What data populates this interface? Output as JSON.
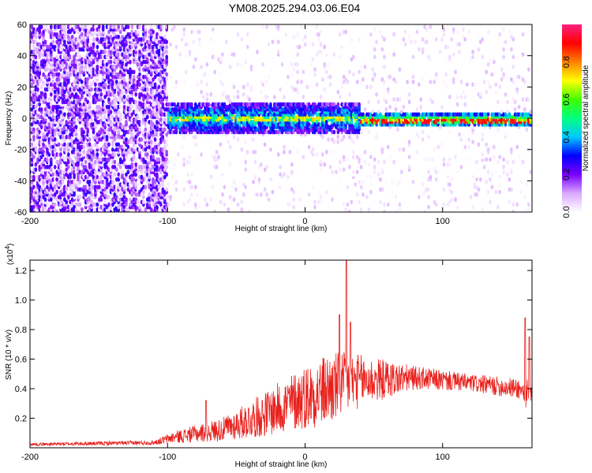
{
  "title": "YM08.2025.294.03.06.E04",
  "chart_data": [
    {
      "type": "heatmap",
      "panel": "spectrogram",
      "xlabel": "Height of straight line (km)",
      "ylabel": "Frequency (Hz)",
      "xlim": [
        -200,
        165
      ],
      "ylim": [
        -60,
        60
      ],
      "xticks": [
        -200,
        -100,
        0,
        100
      ],
      "yticks": [
        60,
        40,
        20,
        0,
        -20,
        -40,
        -60
      ],
      "colorbar": {
        "label": "Normalized spectral amplitude",
        "range": [
          0.0,
          1.0
        ],
        "ticks": [
          "0.0",
          "0.2",
          "0.4",
          "0.6",
          "0.8"
        ],
        "colors": [
          "#ffffff",
          "#d9a8ff",
          "#7a00ff",
          "#0000ff",
          "#00c8ff",
          "#00ff80",
          "#40ff00",
          "#ffff00",
          "#ff8000",
          "#ff0000",
          "#ff2080"
        ]
      },
      "regions": [
        {
          "x_start": -200,
          "x_end": -105,
          "freq_halfwidth": 60,
          "mean_amplitude": 0.15,
          "description_level": "broadband noise"
        },
        {
          "x_start": -115,
          "x_end": -100,
          "freq_halfwidth": 15,
          "mean_amplitude": 0.2
        },
        {
          "x_start": -100,
          "x_end": 40,
          "freq_halfwidth": 10,
          "mean_amplitude": 0.35,
          "peak_amplitude": 0.75,
          "center_freq": 0
        },
        {
          "x_start": 40,
          "x_end": 165,
          "freq_halfwidth": 4,
          "mean_amplitude": 0.55,
          "peak_amplitude": 0.95,
          "center_freq": -1
        }
      ]
    },
    {
      "type": "line",
      "panel": "snr",
      "xlabel": "Height of straight line (km)",
      "ylabel": "SNR (10 * v/v)",
      "multiplier_label": "(x10",
      "multiplier_exp": "4",
      "multiplier_close": ")",
      "xlim": [
        -200,
        165
      ],
      "ylim": [
        0,
        1.27
      ],
      "xticks": [
        -200,
        -100,
        0,
        100
      ],
      "yticks": [
        0.2,
        0.4,
        0.6,
        0.8,
        1.0,
        1.2
      ],
      "ytick_labels": [
        "0.2",
        "0.4",
        "0.6",
        "0.8",
        "1.0",
        "1.2"
      ],
      "color": "#e8201c",
      "envelope": [
        {
          "x": -200,
          "mean": 0.02,
          "spread": 0.01
        },
        {
          "x": -110,
          "mean": 0.03,
          "spread": 0.015
        },
        {
          "x": -95,
          "mean": 0.06,
          "spread": 0.04
        },
        {
          "x": -60,
          "mean": 0.1,
          "spread": 0.08
        },
        {
          "x": -30,
          "mean": 0.18,
          "spread": 0.15
        },
        {
          "x": 0,
          "mean": 0.28,
          "spread": 0.22
        },
        {
          "x": 20,
          "mean": 0.33,
          "spread": 0.25
        },
        {
          "x": 40,
          "mean": 0.4,
          "spread": 0.18
        },
        {
          "x": 80,
          "mean": 0.45,
          "spread": 0.08
        },
        {
          "x": 120,
          "mean": 0.42,
          "spread": 0.06
        },
        {
          "x": 155,
          "mean": 0.38,
          "spread": 0.07
        },
        {
          "x": 165,
          "mean": 0.3,
          "spread": 0.12
        }
      ],
      "spikes": [
        {
          "x": -72,
          "y": 0.32
        },
        {
          "x": 25,
          "y": 0.9
        },
        {
          "x": 30,
          "y": 1.27
        },
        {
          "x": 33,
          "y": 0.85
        },
        {
          "x": 160,
          "y": 0.88
        },
        {
          "x": 163,
          "y": 0.75
        }
      ]
    }
  ]
}
